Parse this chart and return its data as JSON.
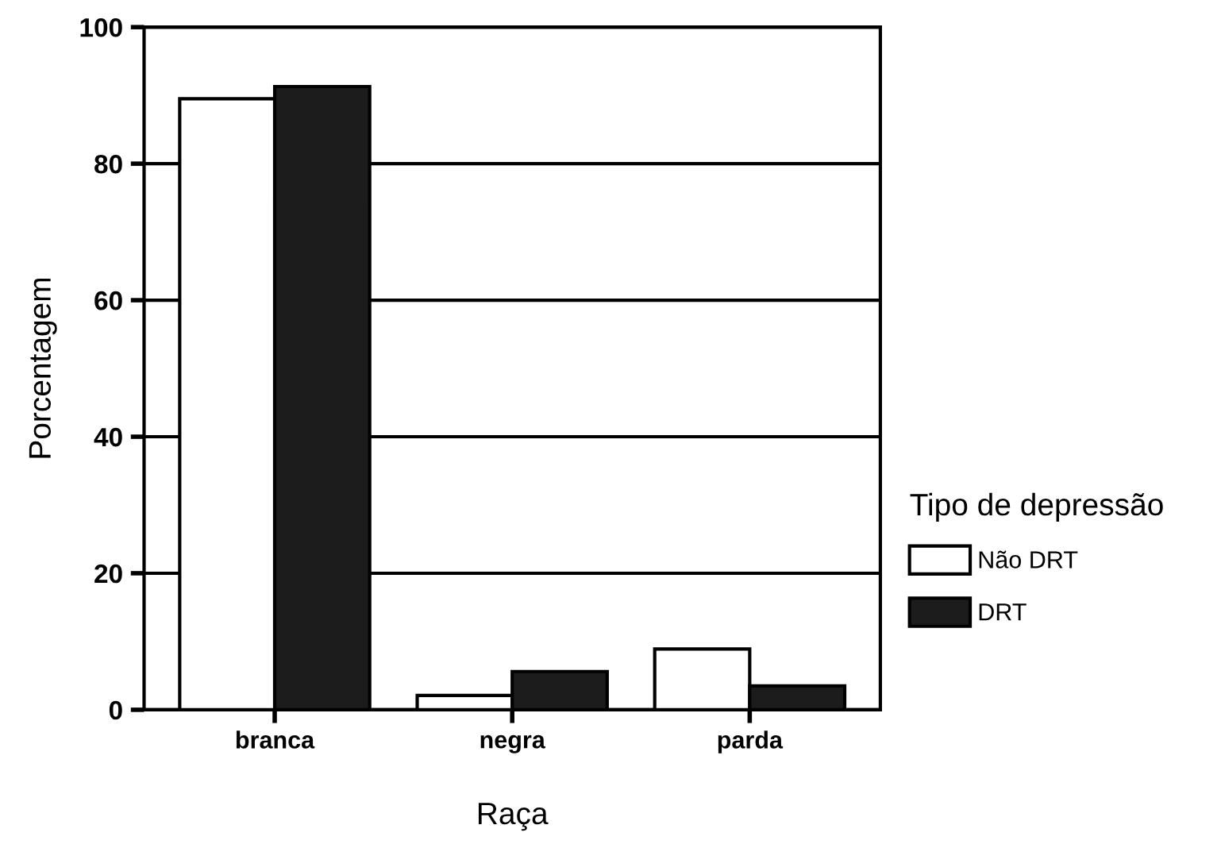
{
  "chart_data": {
    "type": "bar",
    "xlabel": "Raça",
    "ylabel": "Porcentagem",
    "legend_title": "Tipo de depressão",
    "categories": [
      "branca",
      "negra",
      "parda"
    ],
    "series": [
      {
        "name": "Não DRT",
        "color": "#ffffff",
        "values": [
          89.5,
          2.1,
          8.9
        ]
      },
      {
        "name": "DRT",
        "color": "#1c1c1c",
        "values": [
          91.3,
          5.6,
          3.5
        ]
      }
    ],
    "ylim": [
      0,
      100
    ],
    "yticks": [
      0,
      20,
      40,
      60,
      80,
      100
    ],
    "grid": "y",
    "legend": "right"
  }
}
